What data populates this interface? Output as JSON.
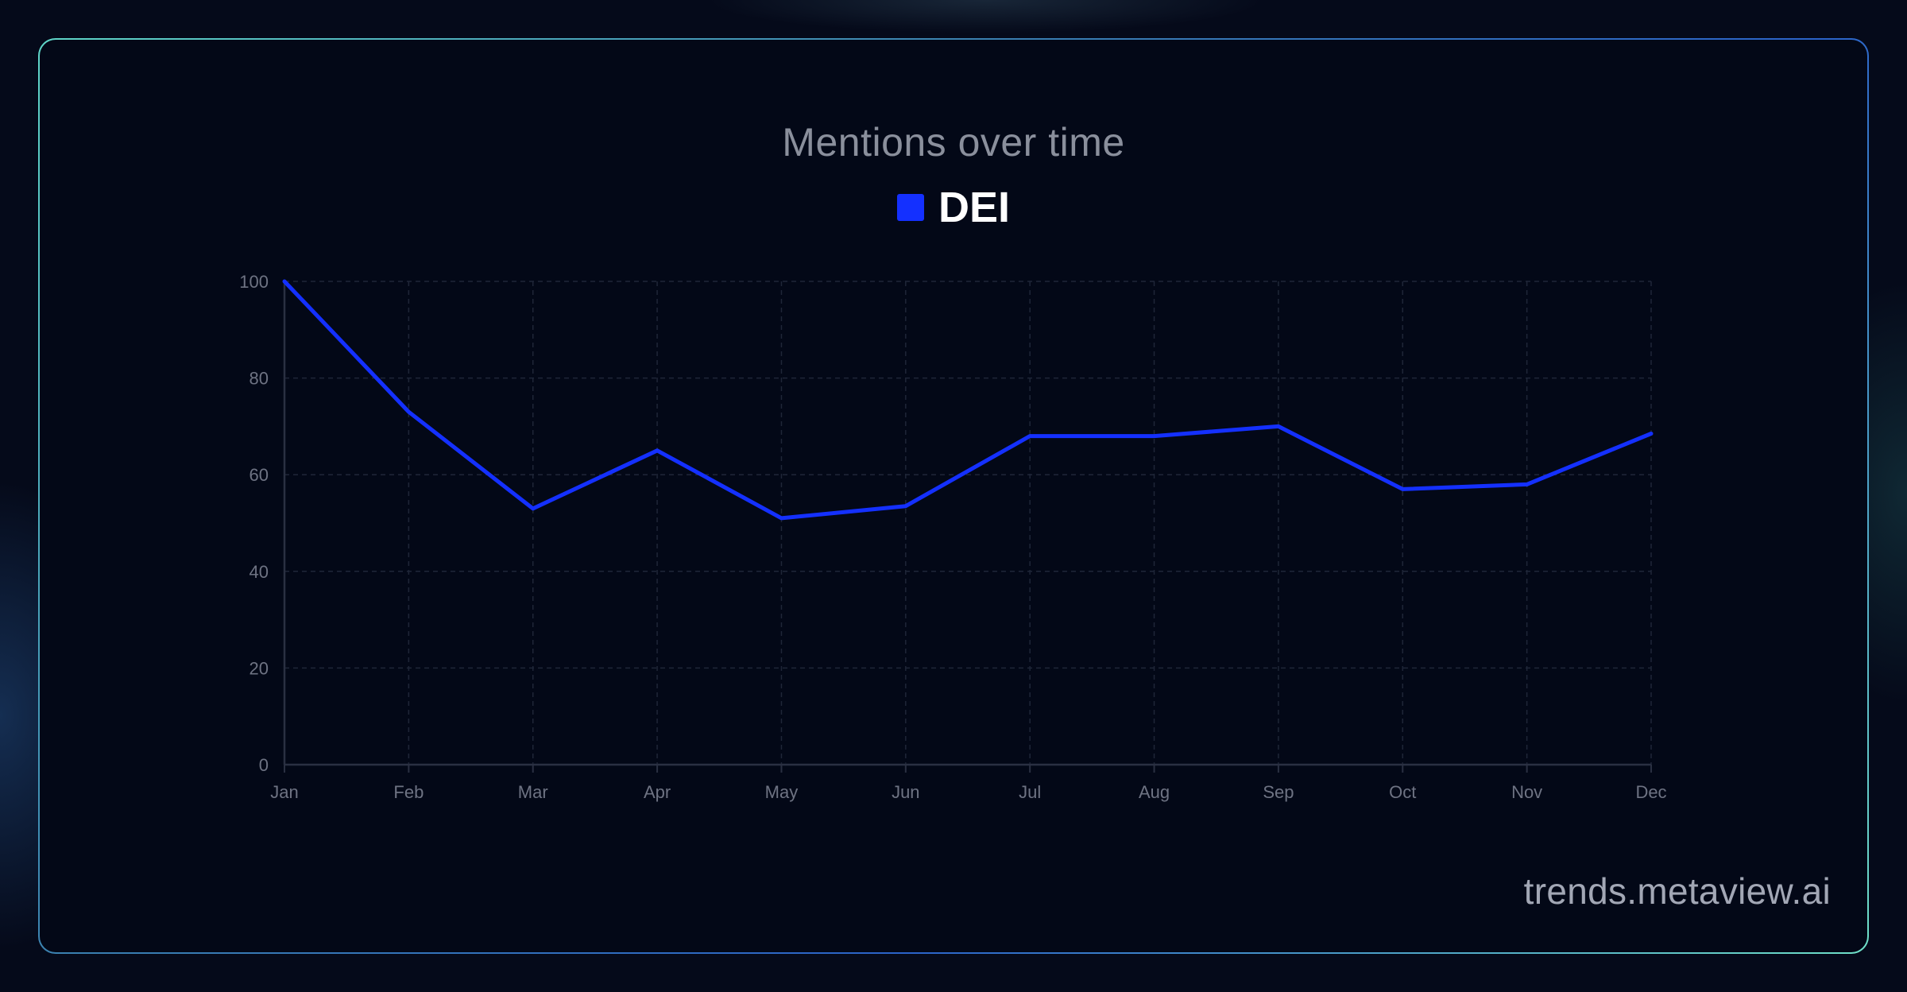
{
  "watermark": "trends.metaview.ai",
  "colors": {
    "series": "#1430ff",
    "grid": "#1f2638",
    "axis": "#2a3042",
    "tick_text": "#6e7383",
    "title_text": "#8a8f9c"
  },
  "chart_data": {
    "type": "line",
    "title": "Mentions over time",
    "xlabel": "",
    "ylabel": "",
    "categories": [
      "Jan",
      "Feb",
      "Mar",
      "Apr",
      "May",
      "Jun",
      "Jul",
      "Aug",
      "Sep",
      "Oct",
      "Nov",
      "Dec"
    ],
    "series": [
      {
        "name": "DEI",
        "color": "#1430ff",
        "values": [
          100,
          73,
          53,
          65,
          51,
          53.5,
          68,
          68,
          70,
          57,
          58,
          68.5
        ]
      }
    ],
    "ylim": [
      0,
      100
    ],
    "yticks": [
      0,
      20,
      40,
      60,
      80,
      100
    ],
    "grid": true,
    "legend": "top-center"
  }
}
